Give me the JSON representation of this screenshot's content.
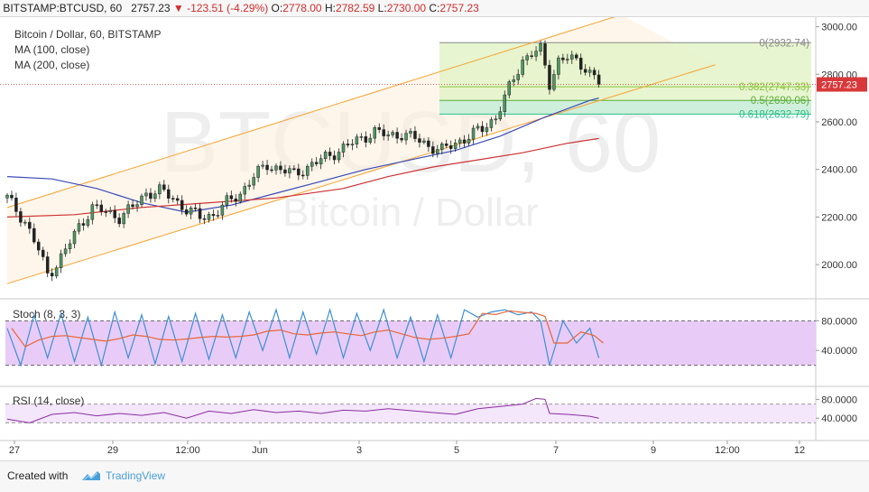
{
  "header": {
    "symbol": "BITSTAMP:BTCUSD, 60",
    "last": "2757.23",
    "change_arrow": "▼",
    "change": "-123.51 (-4.29%)",
    "open_label": "O:",
    "open": "2778.00",
    "high_label": "H:",
    "high": "2782.59",
    "low_label": "L:",
    "low": "2730.00",
    "close_label": "C:",
    "close": "2757.23"
  },
  "legend": {
    "title": "Bitcoin / Dollar, 60, BITSTAMP",
    "ma100": "MA (100, close)",
    "ma200": "MA (200, close)"
  },
  "watermark": {
    "ticker": "BTCUSD, 60",
    "name": "Bitcoin / Dollar"
  },
  "panels": {
    "stoch": "Stoch (8, 3, 3)",
    "rsi": "RSI (14, close)"
  },
  "footer": {
    "created": "Created with",
    "brand": "TradingView"
  },
  "colors": {
    "up": "#4e9a63",
    "down": "#222222",
    "channel": "#f7a331",
    "channel_fill": "#fdf0dd",
    "fib_fill": "#e3f3c8",
    "ma100": "#3b4bb8",
    "ma200": "#cc3333",
    "stoch_k": "#3d8fd6",
    "stoch_d": "#e7663a",
    "stoch_bg": "#e8ccf7",
    "rsi_line": "#8a2fa0",
    "rsi_bg": "#f4e6fb",
    "price_tag": "#d9383a"
  },
  "chart_data": {
    "type": "candlestick",
    "title": "Bitcoin / Dollar, 60, BITSTAMP",
    "x_ticks": [
      "27",
      "29",
      "12:00",
      "Jun",
      "3",
      "5",
      "7",
      "9",
      "12:00",
      "12"
    ],
    "y_ticks": [
      2000,
      2200,
      2400,
      2600,
      2800,
      3000
    ],
    "y_tick_labels": [
      "2000.00",
      "2200.00",
      "2400.00",
      "2600.00",
      "2800.00",
      "3000.00"
    ],
    "ylim": [
      1860,
      3040
    ],
    "last_price": 2757.23,
    "last_price_label": "2757.23",
    "fibonacci": [
      {
        "level": "0",
        "price": 2932.74,
        "label": "0(2932.74)"
      },
      {
        "level": "0.382",
        "price": 2747.33,
        "label": "0.382(2747.33)"
      },
      {
        "level": "0.5",
        "price": 2690.06,
        "label": "0.5(2690.06)"
      },
      {
        "level": "0.618",
        "price": 2632.79,
        "label": "0.618(2632.79)"
      }
    ],
    "price_path": [
      [
        0,
        2280
      ],
      [
        4,
        2180
      ],
      [
        7,
        2060
      ],
      [
        9,
        1960
      ],
      [
        11,
        2000
      ],
      [
        13,
        2060
      ],
      [
        16,
        2160
      ],
      [
        19,
        2240
      ],
      [
        22,
        2220
      ],
      [
        25,
        2200
      ],
      [
        28,
        2240
      ],
      [
        31,
        2300
      ],
      [
        34,
        2310
      ],
      [
        37,
        2280
      ],
      [
        40,
        2230
      ],
      [
        43,
        2200
      ],
      [
        46,
        2210
      ],
      [
        49,
        2260
      ],
      [
        52,
        2300
      ],
      [
        55,
        2370
      ],
      [
        58,
        2420
      ],
      [
        61,
        2400
      ],
      [
        64,
        2380
      ],
      [
        67,
        2410
      ],
      [
        70,
        2440
      ],
      [
        73,
        2470
      ],
      [
        76,
        2500
      ],
      [
        79,
        2530
      ],
      [
        82,
        2560
      ],
      [
        85,
        2540
      ],
      [
        88,
        2550
      ],
      [
        91,
        2530
      ],
      [
        94,
        2500
      ],
      [
        97,
        2480
      ],
      [
        100,
        2510
      ],
      [
        103,
        2540
      ],
      [
        106,
        2570
      ],
      [
        109,
        2620
      ],
      [
        111,
        2700
      ],
      [
        113,
        2780
      ],
      [
        115,
        2860
      ],
      [
        117,
        2890
      ],
      [
        119,
        2900
      ],
      [
        121,
        2760
      ],
      [
        123,
        2860
      ],
      [
        125,
        2870
      ],
      [
        127,
        2850
      ],
      [
        129,
        2830
      ],
      [
        131,
        2790
      ],
      [
        132,
        2757
      ]
    ],
    "ma100": [
      [
        0,
        2370
      ],
      [
        10,
        2360
      ],
      [
        20,
        2320
      ],
      [
        30,
        2260
      ],
      [
        40,
        2220
      ],
      [
        50,
        2250
      ],
      [
        60,
        2300
      ],
      [
        70,
        2350
      ],
      [
        80,
        2400
      ],
      [
        90,
        2440
      ],
      [
        100,
        2480
      ],
      [
        110,
        2540
      ],
      [
        120,
        2620
      ],
      [
        130,
        2690
      ],
      [
        132,
        2700
      ]
    ],
    "ma200": [
      [
        0,
        2200
      ],
      [
        15,
        2210
      ],
      [
        30,
        2240
      ],
      [
        45,
        2260
      ],
      [
        60,
        2280
      ],
      [
        75,
        2320
      ],
      [
        85,
        2370
      ],
      [
        95,
        2410
      ],
      [
        105,
        2440
      ],
      [
        115,
        2470
      ],
      [
        125,
        2510
      ],
      [
        132,
        2530
      ]
    ],
    "channel_upper": [
      [
        0,
        2240
      ],
      [
        137,
        3050
      ]
    ],
    "channel_lower": [
      [
        0,
        1920
      ],
      [
        158,
        2840
      ]
    ],
    "stoch": {
      "levels": [
        20,
        80
      ],
      "tick_labels": [
        "80.0000",
        "40.0000"
      ],
      "k_path": [
        [
          0,
          70
        ],
        [
          3,
          20
        ],
        [
          6,
          88
        ],
        [
          9,
          30
        ],
        [
          12,
          90
        ],
        [
          15,
          25
        ],
        [
          18,
          85
        ],
        [
          21,
          20
        ],
        [
          24,
          92
        ],
        [
          27,
          30
        ],
        [
          30,
          88
        ],
        [
          33,
          22
        ],
        [
          36,
          86
        ],
        [
          39,
          25
        ],
        [
          42,
          90
        ],
        [
          45,
          28
        ],
        [
          48,
          88
        ],
        [
          51,
          30
        ],
        [
          54,
          92
        ],
        [
          57,
          40
        ],
        [
          60,
          95
        ],
        [
          63,
          30
        ],
        [
          66,
          92
        ],
        [
          69,
          35
        ],
        [
          72,
          95
        ],
        [
          75,
          30
        ],
        [
          78,
          90
        ],
        [
          81,
          40
        ],
        [
          84,
          95
        ],
        [
          87,
          30
        ],
        [
          90,
          85
        ],
        [
          93,
          25
        ],
        [
          96,
          88
        ],
        [
          99,
          30
        ],
        [
          102,
          95
        ],
        [
          105,
          85
        ],
        [
          108,
          92
        ],
        [
          111,
          95
        ],
        [
          114,
          88
        ],
        [
          117,
          92
        ],
        [
          119,
          80
        ],
        [
          121,
          20
        ],
        [
          124,
          80
        ],
        [
          127,
          50
        ],
        [
          130,
          70
        ],
        [
          132,
          30
        ]
      ]
    },
    "rsi": {
      "levels": [
        30,
        70
      ],
      "tick_labels": [
        "80.0000",
        "40.0000"
      ],
      "path": [
        [
          0,
          38
        ],
        [
          5,
          30
        ],
        [
          10,
          48
        ],
        [
          15,
          52
        ],
        [
          20,
          45
        ],
        [
          25,
          50
        ],
        [
          30,
          46
        ],
        [
          35,
          52
        ],
        [
          40,
          40
        ],
        [
          45,
          55
        ],
        [
          50,
          50
        ],
        [
          55,
          58
        ],
        [
          60,
          52
        ],
        [
          65,
          55
        ],
        [
          70,
          50
        ],
        [
          75,
          57
        ],
        [
          80,
          55
        ],
        [
          85,
          60
        ],
        [
          90,
          56
        ],
        [
          95,
          52
        ],
        [
          100,
          48
        ],
        [
          105,
          60
        ],
        [
          110,
          65
        ],
        [
          115,
          70
        ],
        [
          118,
          82
        ],
        [
          120,
          80
        ],
        [
          121,
          50
        ],
        [
          125,
          48
        ],
        [
          130,
          44
        ],
        [
          132,
          40
        ]
      ]
    }
  }
}
